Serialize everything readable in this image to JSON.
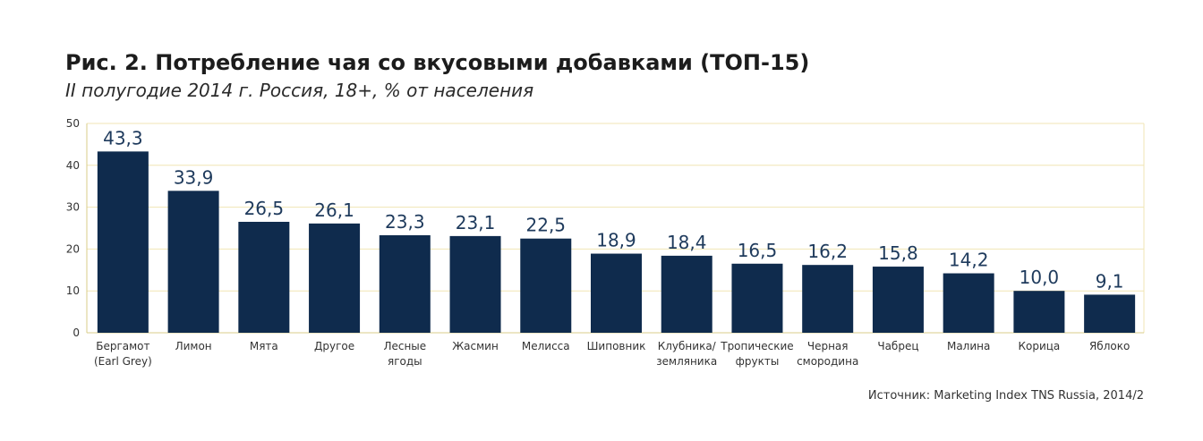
{
  "chart_data": {
    "type": "bar",
    "title": "Рис. 2. Потребление чая со вкусовыми добавками (ТОП-15)",
    "subtitle": "II полугодие 2014 г. Россия, 18+, % от населения",
    "source": "Источник: Marketing Index TNS Russia, 2014/2",
    "categories": [
      [
        "Бергамот",
        "(Earl Grey)"
      ],
      [
        "Лимон"
      ],
      [
        "Мята"
      ],
      [
        "Другое"
      ],
      [
        "Лесные",
        "ягоды"
      ],
      [
        "Жасмин"
      ],
      [
        "Мелисса"
      ],
      [
        "Шиповник"
      ],
      [
        "Клубника/",
        "земляника"
      ],
      [
        "Тропические",
        "фрукты"
      ],
      [
        "Черная",
        "смородина"
      ],
      [
        "Чабрец"
      ],
      [
        "Малина"
      ],
      [
        "Корица"
      ],
      [
        "Яблоко"
      ]
    ],
    "values": [
      43.3,
      33.9,
      26.5,
      26.1,
      23.3,
      23.1,
      22.5,
      18.9,
      18.4,
      16.5,
      16.2,
      15.8,
      14.2,
      10.0,
      9.1
    ],
    "value_labels": [
      "43,3",
      "33,9",
      "26,5",
      "26,1",
      "23,3",
      "23,1",
      "22,5",
      "18,9",
      "18,4",
      "16,5",
      "16,2",
      "15,8",
      "14,2",
      "10,0",
      "9,1"
    ],
    "yticks": [
      0,
      10,
      20,
      30,
      40,
      50
    ],
    "ylim": [
      0,
      50
    ],
    "xlabel": "",
    "ylabel": "",
    "grid": true,
    "colors": {
      "bar": "#0f2b4d",
      "grid": "#f0e6b4",
      "axis": "#d9cd8a",
      "value_text": "#1e3a5c"
    }
  }
}
